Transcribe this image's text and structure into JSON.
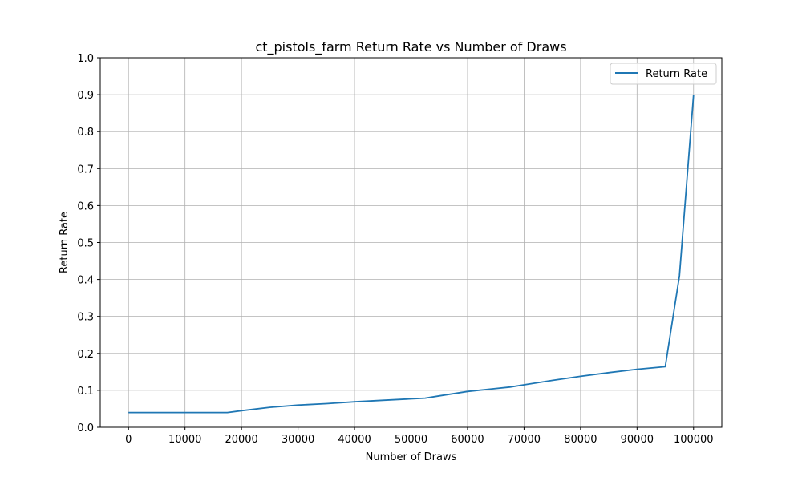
{
  "chart_data": {
    "type": "line",
    "title": "ct_pistols_farm Return Rate vs Number of Draws",
    "xlabel": "Number of Draws",
    "ylabel": "Return Rate",
    "xlim": [
      -5000,
      105000
    ],
    "ylim": [
      0.0,
      1.0
    ],
    "xticks": [
      0,
      10000,
      20000,
      30000,
      40000,
      50000,
      60000,
      70000,
      80000,
      90000,
      100000
    ],
    "xtick_labels": [
      "0",
      "10000",
      "20000",
      "30000",
      "40000",
      "50000",
      "60000",
      "70000",
      "80000",
      "90000",
      "100000"
    ],
    "yticks": [
      0.0,
      0.1,
      0.2,
      0.3,
      0.4,
      0.5,
      0.6,
      0.7,
      0.8,
      0.9,
      1.0
    ],
    "ytick_labels": [
      "0.0",
      "0.1",
      "0.2",
      "0.3",
      "0.4",
      "0.5",
      "0.6",
      "0.7",
      "0.8",
      "0.9",
      "1.0"
    ],
    "grid": true,
    "legend_position": "top-right",
    "series": [
      {
        "name": "Return Rate",
        "color": "#1f77b4",
        "x": [
          0,
          5000,
          10000,
          15000,
          17500,
          20000,
          25000,
          30000,
          35000,
          40000,
          45000,
          50000,
          52500,
          55000,
          60000,
          65000,
          67500,
          70000,
          75000,
          80000,
          85000,
          90000,
          95000,
          97500,
          100000
        ],
        "y": [
          0.04,
          0.04,
          0.04,
          0.04,
          0.04,
          0.045,
          0.054,
          0.06,
          0.064,
          0.069,
          0.073,
          0.077,
          0.079,
          0.085,
          0.097,
          0.105,
          0.109,
          0.115,
          0.127,
          0.138,
          0.148,
          0.157,
          0.164,
          0.41,
          0.9
        ]
      }
    ]
  }
}
